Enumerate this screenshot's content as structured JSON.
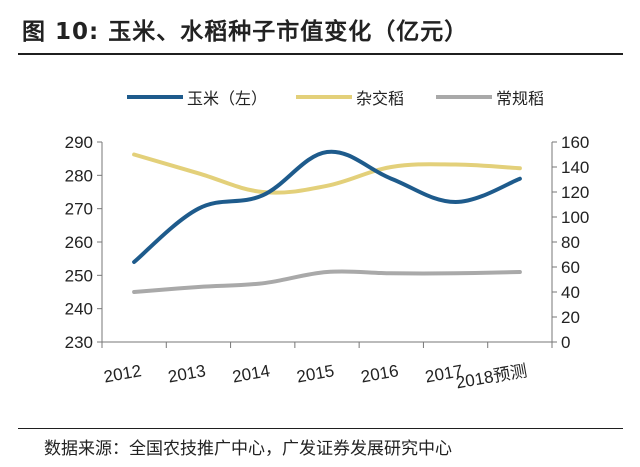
{
  "figure": {
    "title": "图 10:  玉米、水稻种子市值变化（亿元）",
    "source": "数据来源：全国农技推广中心，广发证券发展研究中心"
  },
  "chart_data": {
    "type": "line",
    "title": "图 10:  玉米、水稻种子市值变化（亿元）",
    "categories": [
      "2012",
      "2013",
      "2014",
      "2015",
      "2016",
      "2017",
      "2018预测"
    ],
    "left_axis": {
      "ylim": [
        230,
        290
      ],
      "ticks": [
        "230",
        "240",
        "250",
        "260",
        "270",
        "280",
        "290"
      ]
    },
    "right_axis": {
      "ylim": [
        0,
        160
      ],
      "ticks": [
        "0",
        "20",
        "40",
        "60",
        "80",
        "100",
        "120",
        "140",
        "160"
      ]
    },
    "series": [
      {
        "name": "玉米（左）",
        "axis": "left",
        "color": "#1e5b8c",
        "values": [
          254,
          270,
          274,
          287,
          279,
          272,
          279
        ]
      },
      {
        "name": "杂交稻",
        "axis": "right",
        "color": "#e3d07a",
        "values": [
          150,
          135,
          120,
          125,
          140,
          142,
          139
        ]
      },
      {
        "name": "常规稻",
        "axis": "right",
        "color": "#a9a9a9",
        "values": [
          40,
          44,
          47,
          56,
          55,
          55,
          56
        ]
      }
    ],
    "legend_position": "top",
    "grid": false
  }
}
